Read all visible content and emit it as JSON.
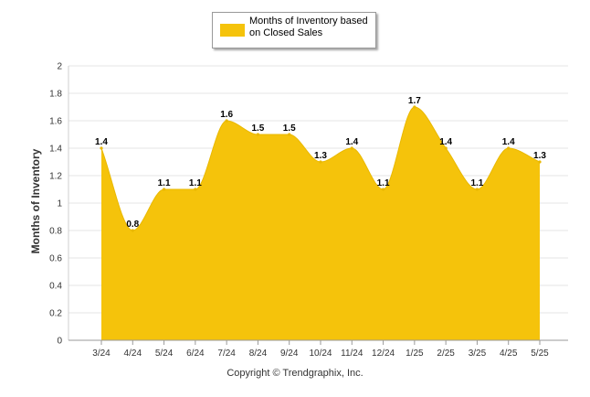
{
  "chart_data": {
    "type": "area",
    "categories": [
      "3/24",
      "4/24",
      "5/24",
      "6/24",
      "7/24",
      "8/24",
      "9/24",
      "10/24",
      "11/24",
      "12/24",
      "1/25",
      "2/25",
      "3/25",
      "4/25",
      "5/25"
    ],
    "series": [
      {
        "name": "Months of Inventory based on Closed Sales",
        "values": [
          1.4,
          0.8,
          1.1,
          1.1,
          1.6,
          1.5,
          1.5,
          1.3,
          1.4,
          1.1,
          1.7,
          1.4,
          1.1,
          1.4,
          1.3
        ],
        "labels": [
          "1.4",
          "0.8",
          "1.1",
          "1.1",
          "1.6",
          "1.5",
          "1.5",
          "1.3",
          "1.4",
          "1.1",
          "1.7",
          "1.4",
          "1.1",
          "1.4",
          "1.3"
        ],
        "color": "#f5c30b"
      }
    ],
    "ylabel": "Months of Inventory",
    "xlabel": "",
    "ylim": [
      0,
      2
    ],
    "yticks": [
      0,
      0.2,
      0.4,
      0.6,
      0.8,
      1,
      1.2,
      1.4,
      1.6,
      1.8,
      2
    ],
    "ytick_labels": [
      "0",
      "0.2",
      "0.4",
      "0.6",
      "0.8",
      "1",
      "1.2",
      "1.4",
      "1.6",
      "1.8",
      "2"
    ],
    "grid": true,
    "smooth": true,
    "legend_position": "top-center"
  },
  "legend": {
    "label": "Months of Inventory based on Closed Sales"
  },
  "footer": {
    "copyright": "Copyright © Trendgraphix, Inc."
  }
}
